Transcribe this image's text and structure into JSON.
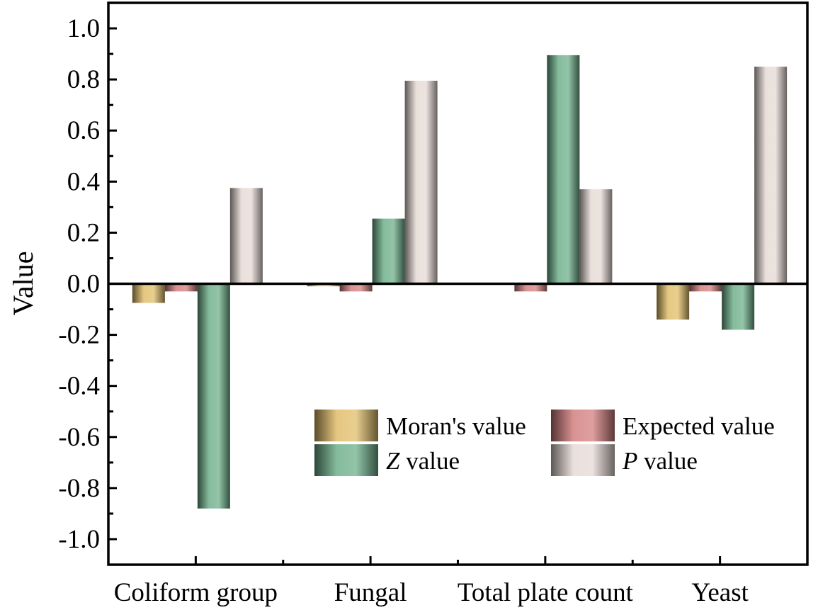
{
  "chart_data": {
    "type": "bar",
    "title": "",
    "xlabel": "",
    "ylabel": "Value",
    "ylim": [
      -1.1,
      1.1
    ],
    "yticks": [
      -1.0,
      -0.8,
      -0.6,
      -0.4,
      -0.2,
      0.0,
      0.2,
      0.4,
      0.6,
      0.8,
      1.0
    ],
    "ytick_labels": [
      "-1.0",
      "-0.8",
      "-0.6",
      "-0.4",
      "-0.2",
      "0.0",
      "0.2",
      "0.4",
      "0.6",
      "0.8",
      "1.0"
    ],
    "categories": [
      "Coliform group",
      "Fungal",
      "Total plate count",
      "Yeast"
    ],
    "grid": false,
    "legend_position": "lower-right",
    "series": [
      {
        "name": "Moran's value",
        "legend_italic": "",
        "legend_rest": "Moran's value",
        "color": "#e0bd6a",
        "values": [
          -0.075,
          -0.01,
          0.0,
          -0.14
        ]
      },
      {
        "name": "Expected value",
        "legend_italic": "",
        "legend_rest": "Expected value",
        "color": "#d47f7f",
        "values": [
          -0.03,
          -0.03,
          -0.03,
          -0.03
        ]
      },
      {
        "name": "Z value",
        "legend_italic": "Z",
        "legend_rest": " value",
        "color": "#6fb08b",
        "values": [
          -0.88,
          0.255,
          0.895,
          -0.18
        ]
      },
      {
        "name": "P value",
        "legend_italic": "P",
        "legend_rest": " value",
        "color": "#e6dad5",
        "values": [
          0.375,
          0.795,
          0.37,
          0.85
        ]
      }
    ]
  }
}
